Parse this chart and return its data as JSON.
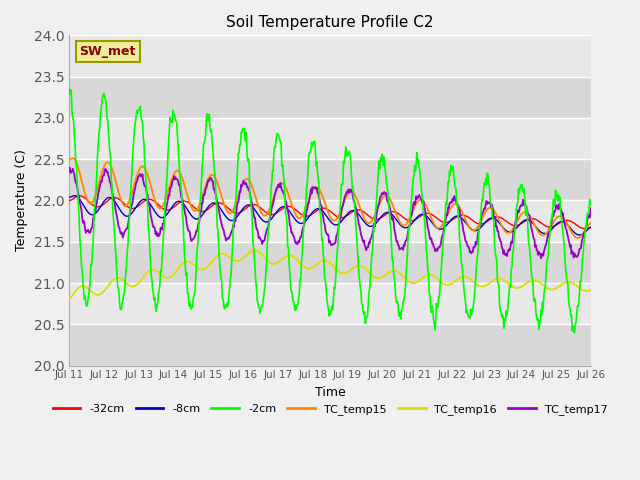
{
  "title": "Soil Temperature Profile C2",
  "xlabel": "Time",
  "ylabel": "Temperature (C)",
  "ylim": [
    20.0,
    24.0
  ],
  "yticks": [
    20.0,
    20.5,
    21.0,
    21.5,
    22.0,
    22.5,
    23.0,
    23.5,
    24.0
  ],
  "xtick_labels": [
    "Jul 11",
    "Jul 12",
    "Jul 13",
    "Jul 14",
    "Jul 15",
    "Jul 16",
    "Jul 17",
    "Jul 18",
    "Jul 19",
    "Jul 20",
    "Jul 21",
    "Jul 22",
    "Jul 23",
    "Jul 24",
    "Jul 25",
    "Jul 26"
  ],
  "legend_labels": [
    "-32cm",
    "-8cm",
    "-2cm",
    "TC_temp15",
    "TC_temp16",
    "TC_temp17"
  ],
  "legend_colors": [
    "#ff0000",
    "#0000cc",
    "#00ff00",
    "#ff8800",
    "#dddd00",
    "#9900cc"
  ],
  "line_colors": {
    "neg32cm": "#ff0000",
    "neg8cm": "#0000cc",
    "neg2cm": "#00ff00",
    "TC_temp15": "#ff8800",
    "TC_temp16": "#dddd00",
    "TC_temp17": "#9900cc"
  },
  "annotation_text": "SW_met",
  "annotation_color": "#880000",
  "annotation_bg": "#eeee99",
  "bg_color": "#d8d8d8",
  "plot_bg_color": "#d8d8d8",
  "band_color1": "#d8d8d8",
  "band_color2": "#e8e8e8"
}
